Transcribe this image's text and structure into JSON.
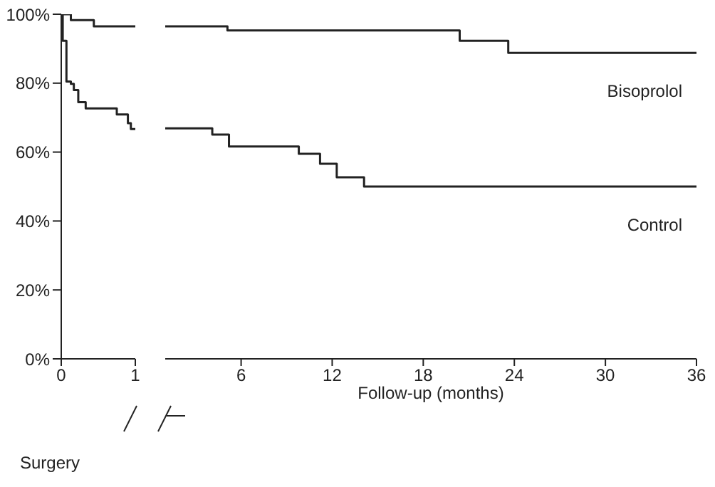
{
  "chart_data": [
    {
      "type": "step",
      "xlim": [
        0,
        1
      ],
      "xticks": [
        0,
        1
      ],
      "ylim": [
        0,
        100
      ],
      "yticks": [
        {
          "value": 0,
          "label": "0%"
        },
        {
          "value": 20,
          "label": "20%"
        },
        {
          "value": 40,
          "label": "40%"
        },
        {
          "value": 60,
          "label": "60%"
        },
        {
          "value": 80,
          "label": "80%"
        },
        {
          "value": 100,
          "label": "100%"
        }
      ],
      "annotations": [
        "Surgery"
      ],
      "series": [
        {
          "color": "#222222",
          "x": [
            0,
            0.13,
            0.44,
            1
          ],
          "values": [
            100,
            98.3,
            96.5,
            96.5
          ]
        },
        {
          "color": "#222222",
          "x": [
            0,
            0.02,
            0.07,
            0.13,
            0.17,
            0.23,
            0.33,
            0.75,
            0.9,
            0.94,
            1
          ],
          "values": [
            100,
            92.3,
            80.5,
            79.8,
            78,
            74.5,
            72.7,
            70.9,
            68.4,
            66.7,
            66.7
          ]
        }
      ]
    },
    {
      "type": "step",
      "xlim": [
        1,
        36
      ],
      "xticks": [
        6,
        12,
        18,
        24,
        30,
        36
      ],
      "ylim": [
        0,
        100
      ],
      "tick_labels": "x",
      "xlabel": "Follow-up (months)",
      "series": [
        {
          "name": "Bisoprolol",
          "color": "#222222",
          "x": [
            1,
            5.1,
            20.4,
            23.6,
            36
          ],
          "values": [
            96.5,
            95.3,
            92.3,
            88.8,
            88.8
          ]
        },
        {
          "name": "Control",
          "color": "#222222",
          "x": [
            1,
            4.1,
            5.2,
            9.8,
            11.2,
            12.3,
            14.1,
            36
          ],
          "values": [
            66.9,
            65.1,
            61.6,
            59.5,
            56.6,
            52.7,
            50,
            50
          ]
        }
      ]
    }
  ]
}
